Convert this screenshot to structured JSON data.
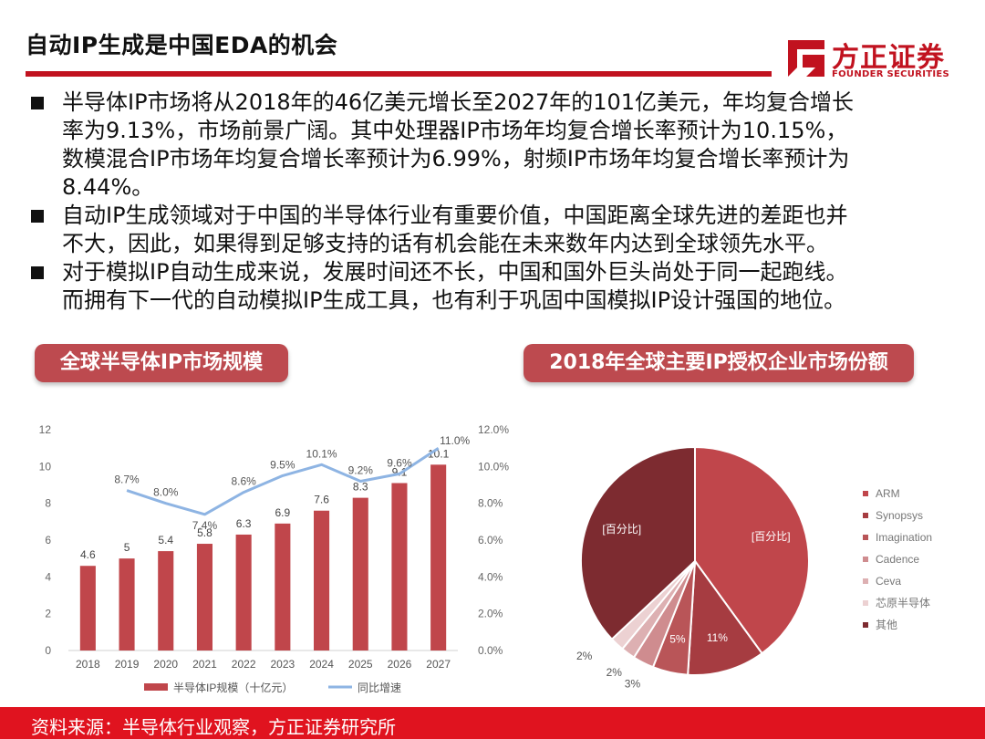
{
  "header": {
    "title": "自动IP生成是中国EDA的机会",
    "logo_cn": "方正证券",
    "logo_en": "FOUNDER SECURITIES",
    "accent_color": "#c1121f"
  },
  "bullets": [
    {
      "lines": [
        "半导体IP市场将从2018年的46亿美元增长至2027年的101亿美元，年均复合增长",
        "率为9.13%，市场前景广阔。其中处理器IP市场年均复合增长率预计为10.15%，",
        "数模混合IP市场年均复合增长率预计为6.99%，射频IP市场年均复合增长率预计为",
        "8.44%。"
      ]
    },
    {
      "lines": [
        "自动IP生成领域对于中国的半导体行业有重要价值，中国距离全球先进的差距也并",
        "不大，因此，如果得到足够支持的话有机会能在未来数年内达到全球领先水平。"
      ]
    },
    {
      "lines": [
        "对于模拟IP自动生成来说，发展时间还不长，中国和国外巨头尚处于同一起跑线。",
        "而拥有下一代的自动模拟IP生成工具，也有利于巩固中国模拟IP设计强国的地位。"
      ]
    }
  ],
  "pills": {
    "left": "全球半导体IP市场规模",
    "right": "2018年全球主要IP授权企业市场份额"
  },
  "chart_data": [
    {
      "type": "bar",
      "title": "全球半导体IP市场规模",
      "categories": [
        "2018",
        "2019",
        "2020",
        "2021",
        "2022",
        "2023",
        "2024",
        "2025",
        "2026",
        "2027"
      ],
      "series": [
        {
          "name": "半导体IP规模（十亿元）",
          "type": "bar",
          "color": "#c0464b",
          "values": [
            4.6,
            5,
            5.4,
            5.8,
            6.3,
            6.9,
            7.6,
            8.3,
            9.1,
            10.1
          ],
          "labels": [
            "4.6",
            "5",
            "5.4",
            "5.8",
            "6.3",
            "6.9",
            "7.6",
            "8.3",
            "9.1",
            "10.1"
          ]
        },
        {
          "name": "同比增速",
          "type": "line",
          "axis": "right",
          "color": "#8eb4e3",
          "values": [
            null,
            8.7,
            8.0,
            7.4,
            8.6,
            9.5,
            10.1,
            9.2,
            9.6,
            11.0
          ],
          "labels": [
            "",
            "8.7%",
            "8.0%",
            "7.4%",
            "8.6%",
            "9.5%",
            "10.1%",
            "9.2%",
            "9.6%",
            "11.0%"
          ]
        }
      ],
      "yticks_left": [
        "0",
        "2",
        "4",
        "6",
        "8",
        "10",
        "12"
      ],
      "ylim_left": [
        0,
        12
      ],
      "yticks_right": [
        "0.0%",
        "2.0%",
        "4.0%",
        "6.0%",
        "8.0%",
        "10.0%",
        "12.0%"
      ],
      "ylim_right": [
        0,
        12
      ]
    },
    {
      "type": "pie",
      "title": "2018年全球主要IP授权企业市场份额",
      "legend_position": "right",
      "slices": [
        {
          "name": "ARM",
          "value": 40,
          "label": "[百分比]",
          "color": "#c0464b"
        },
        {
          "name": "Synopsys",
          "value": 11,
          "label": "11%",
          "color": "#a63c41"
        },
        {
          "name": "Imagination",
          "value": 5,
          "label": "5%",
          "color": "#b95558"
        },
        {
          "name": "Cadence",
          "value": 3,
          "label": "3%",
          "color": "#cf8c8f"
        },
        {
          "name": "Ceva",
          "value": 2,
          "label": "2%",
          "color": "#ddb0b2"
        },
        {
          "name": "芯原半导体",
          "value": 2,
          "label": "2%",
          "color": "#ecd1d2"
        },
        {
          "name": "其他",
          "value": 37,
          "label": "[百分比]",
          "color": "#7d2b30"
        }
      ]
    }
  ],
  "footer": {
    "source": "资料来源：半导体行业观察，方正证券研究所"
  }
}
